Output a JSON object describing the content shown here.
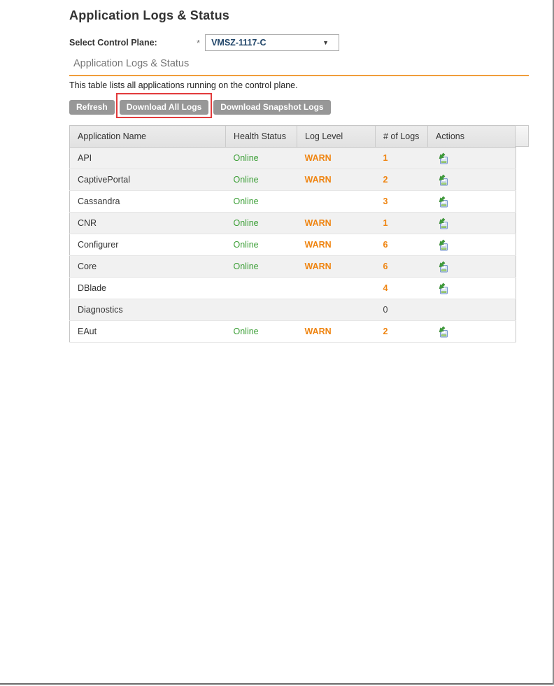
{
  "page": {
    "title": "Application Logs & Status",
    "select_label": "Select Control Plane:",
    "required_marker": "*",
    "dropdown_value": "VMSZ-1117-C",
    "section_title": "Application Logs & Status",
    "description": "This table lists all applications running on the control plane."
  },
  "toolbar": {
    "buttons": [
      {
        "label": "Refresh",
        "highlighted": false
      },
      {
        "label": "Download All Logs",
        "highlighted": true
      },
      {
        "label": "Download Snapshot Logs",
        "highlighted": false
      }
    ]
  },
  "table": {
    "columns": [
      "Application Name",
      "Health Status",
      "Log Level",
      "# of Logs",
      "Actions"
    ],
    "rows": [
      {
        "name": "API",
        "health": "Online",
        "log_level": "WARN",
        "logs": "1",
        "has_action": true,
        "shaded": true
      },
      {
        "name": "CaptivePortal",
        "health": "Online",
        "log_level": "WARN",
        "logs": "2",
        "has_action": true,
        "shaded": true
      },
      {
        "name": "Cassandra",
        "health": "Online",
        "log_level": "",
        "logs": "3",
        "has_action": true,
        "shaded": false
      },
      {
        "name": "CNR",
        "health": "Online",
        "log_level": "WARN",
        "logs": "1",
        "has_action": true,
        "shaded": true
      },
      {
        "name": "Configurer",
        "health": "Online",
        "log_level": "WARN",
        "logs": "6",
        "has_action": true,
        "shaded": false
      },
      {
        "name": "Core",
        "health": "Online",
        "log_level": "WARN",
        "logs": "6",
        "has_action": true,
        "shaded": true
      },
      {
        "name": "DBlade",
        "health": "",
        "log_level": "",
        "logs": "4",
        "has_action": true,
        "shaded": false
      },
      {
        "name": "Diagnostics",
        "health": "",
        "log_level": "",
        "logs": "0",
        "has_action": false,
        "shaded": true
      },
      {
        "name": "EAut",
        "health": "Online",
        "log_level": "WARN",
        "logs": "2",
        "has_action": true,
        "shaded": false
      }
    ]
  },
  "icons": {
    "action_icon": "download-log-to-disk-icon",
    "dropdown_caret": "chevron-down-icon"
  },
  "colors": {
    "online_green": "#3a9e35",
    "warn_orange": "#ef8512",
    "highlight_red": "#e23b3c",
    "rule_orange": "#f09d3b",
    "button_gray": "#979797"
  }
}
